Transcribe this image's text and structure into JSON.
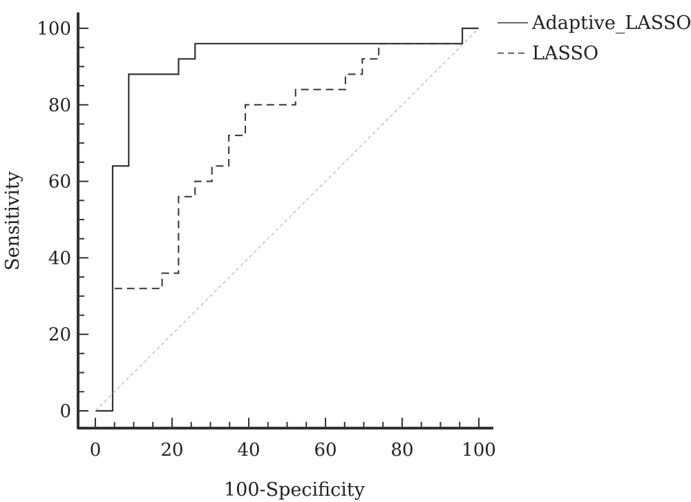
{
  "chart_data": {
    "type": "line",
    "xlabel": "100-Specificity",
    "ylabel": "Sensitivity",
    "xlim": [
      0,
      100
    ],
    "ylim": [
      0,
      100
    ],
    "xticks": [
      0,
      20,
      40,
      60,
      80,
      100
    ],
    "yticks": [
      0,
      20,
      40,
      60,
      80,
      100
    ],
    "grid": false,
    "legend_position": "top-right",
    "series": [
      {
        "name": "Adaptive_LASSO",
        "style": "solid",
        "color": "#333333",
        "x": [
          0,
          4.5,
          4.5,
          8.7,
          8.7,
          21.7,
          21.7,
          26,
          26,
          95.7,
          95.7,
          100
        ],
        "y": [
          0,
          0,
          64,
          64,
          88,
          88,
          92,
          92,
          96,
          96,
          100,
          100
        ]
      },
      {
        "name": "LASSO",
        "style": "dashed",
        "color": "#333333",
        "x": [
          4.5,
          4.5,
          17.4,
          17.4,
          21.7,
          21.7,
          26,
          26,
          30.4,
          30.4,
          34.8,
          34.8,
          39.1,
          39.1,
          52.2,
          52.2,
          65.2,
          65.2,
          69.6,
          69.6,
          73.9,
          73.9,
          95.7
        ],
        "y": [
          0,
          32,
          32,
          36,
          36,
          56,
          56,
          60,
          60,
          64,
          64,
          72,
          72,
          80,
          80,
          84,
          84,
          88,
          88,
          92,
          92,
          96,
          96
        ]
      },
      {
        "style": "dotted-reference",
        "color": "#bbbbbb",
        "x": [
          0,
          100
        ],
        "y": [
          0,
          100
        ]
      }
    ]
  }
}
